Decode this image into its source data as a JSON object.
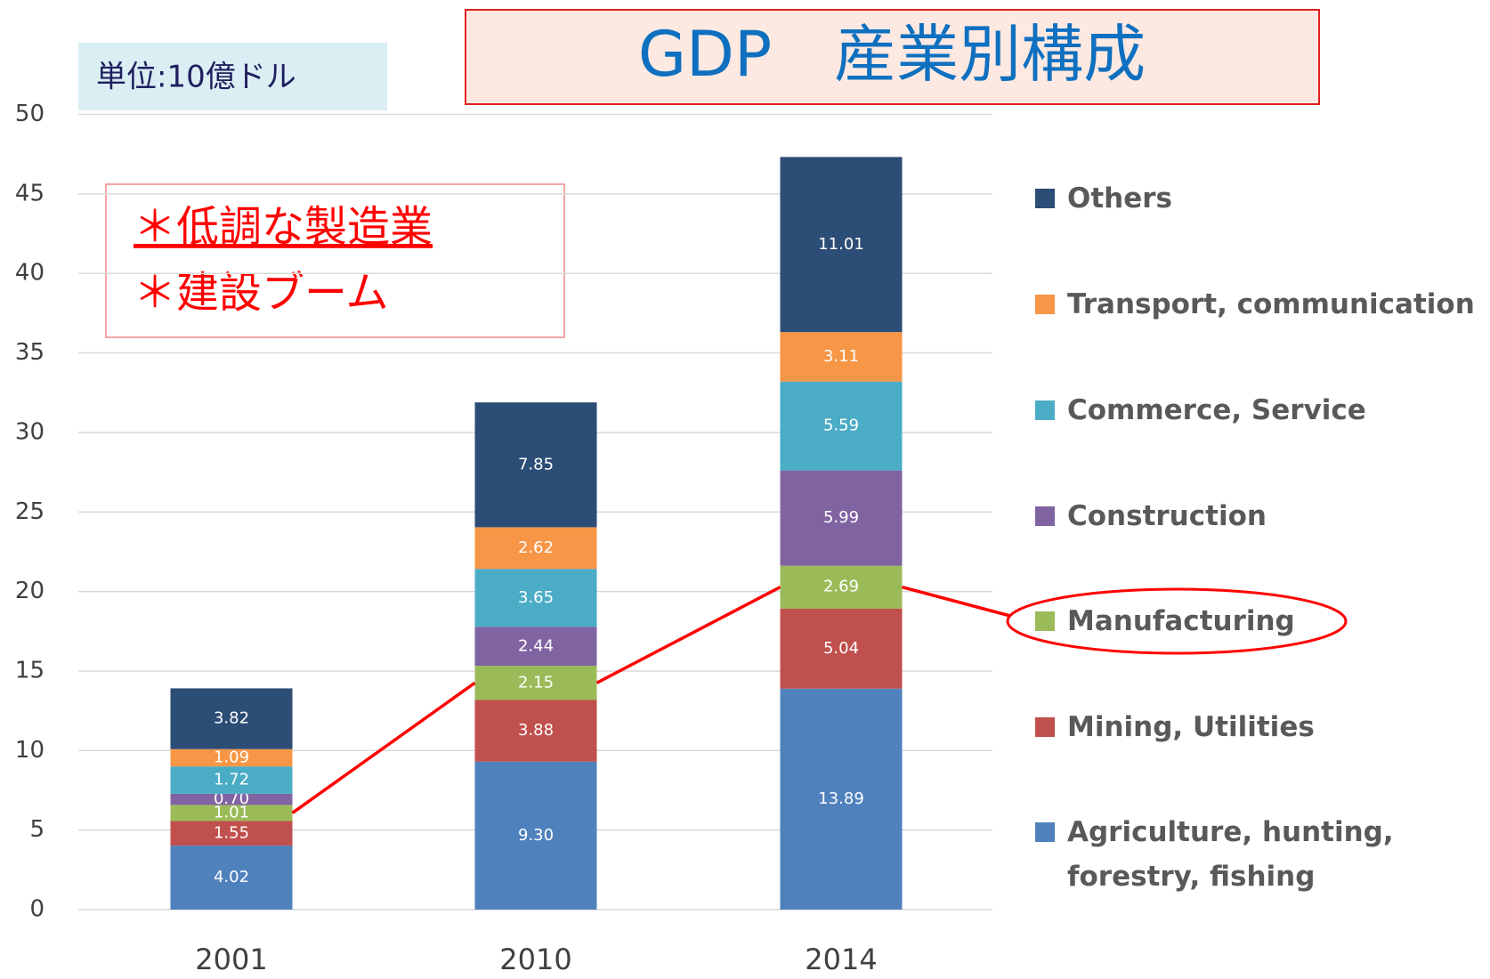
{
  "chart_data": {
    "type": "bar",
    "stacked": true,
    "title": "GDP　産業別構成",
    "annotations": [
      "単位:10億ドル",
      "＊低調な製造業",
      "＊建設ブーム"
    ],
    "categories": [
      "2001",
      "2010",
      "2014"
    ],
    "ylim": [
      0,
      50
    ],
    "yticks": [
      0,
      5,
      10,
      15,
      20,
      25,
      30,
      35,
      40,
      45,
      50
    ],
    "grid": true,
    "series": [
      {
        "name": "Agriculture, hunting, forestry, fishing",
        "color": "#4f81bd",
        "values": [
          4.02,
          9.3,
          13.89
        ],
        "value_labels": [
          "4.02",
          "9.30",
          "13.89"
        ]
      },
      {
        "name": "Mining, Utilities",
        "color": "#c0504d",
        "values": [
          1.55,
          3.88,
          5.04
        ]
      },
      {
        "name": "Manufacturing",
        "color": "#9bbb59",
        "values": [
          1.01,
          2.15,
          2.69
        ]
      },
      {
        "name": "Construction",
        "color": "#8064a2",
        "values": [
          0.7,
          2.44,
          5.99
        ],
        "value_labels": [
          "0.70",
          "2.44",
          "5.99"
        ]
      },
      {
        "name": "Commerce, Service",
        "color": "#4bacc6",
        "values": [
          1.72,
          3.65,
          5.59
        ]
      },
      {
        "name": "Transport, communication",
        "color": "#f79646",
        "values": [
          1.09,
          2.62,
          3.11
        ]
      },
      {
        "name": "Others",
        "color": "#2c4d75",
        "values": [
          3.82,
          7.85,
          11.01
        ]
      }
    ]
  }
}
